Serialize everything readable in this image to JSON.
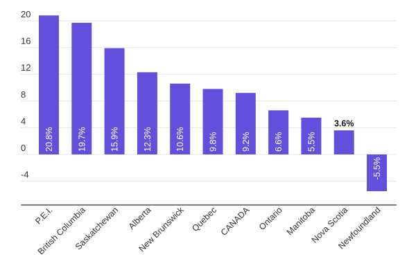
{
  "chart_data": {
    "type": "bar",
    "title": "",
    "xlabel": "",
    "ylabel": "",
    "categories": [
      "P.E.I.",
      "British Columbia",
      "Saskatchewan",
      "Alberta",
      "New Brunswick",
      "Quebec",
      "CANADA",
      "Ontario",
      "Manitoba",
      "Nova Scotia",
      "Newfoundland"
    ],
    "values": [
      20.8,
      19.7,
      15.9,
      12.3,
      10.6,
      9.8,
      9.2,
      6.6,
      5.5,
      3.6,
      -5.5
    ],
    "data_labels": [
      "20.8%",
      "19.7%",
      "15.9%",
      "12.3%",
      "10.6%",
      "9.8%",
      "9.2%",
      "6.6%",
      "5.5%",
      "3.6%",
      "-5.5%"
    ],
    "yticks": [
      20,
      16,
      12,
      8,
      4,
      0,
      -4
    ],
    "ylim": [
      -6,
      22
    ],
    "grid": true,
    "bar_color": "#6250dc",
    "grid_color": "#e4e4e4",
    "axis_color": "#333333"
  }
}
